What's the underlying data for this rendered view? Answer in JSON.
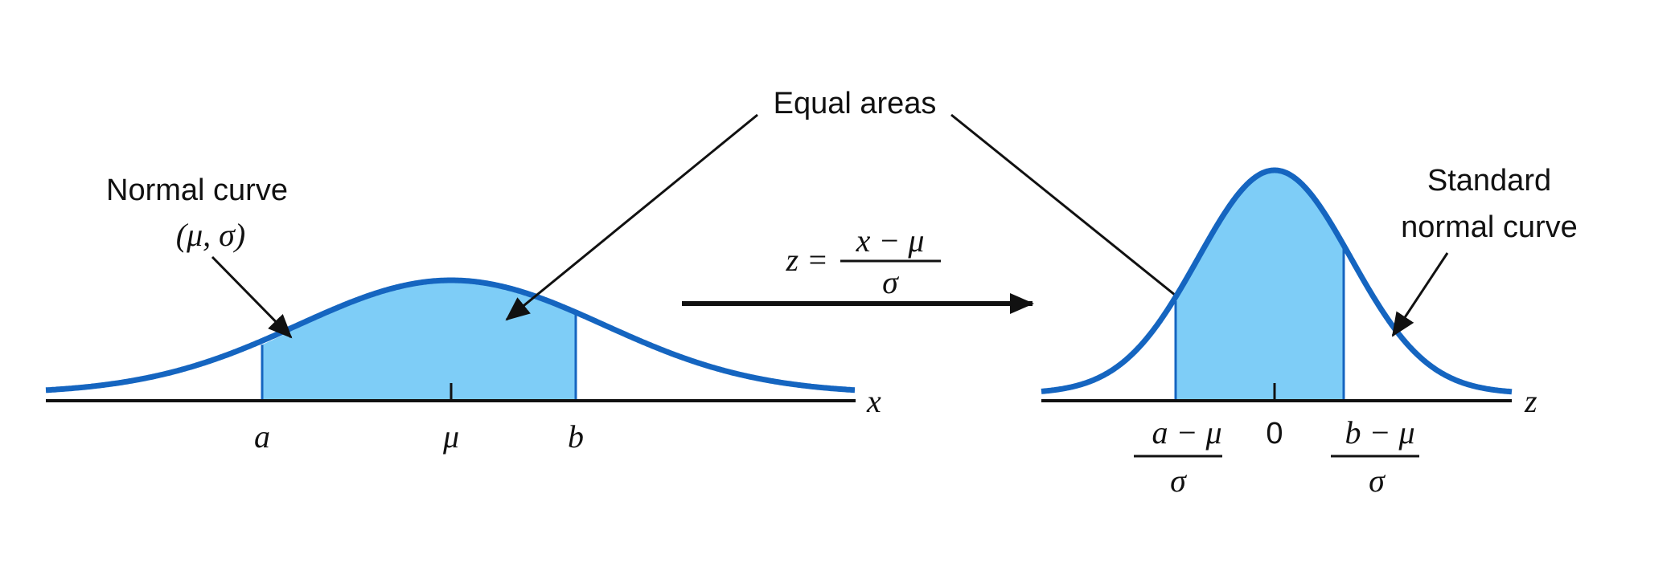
{
  "colors": {
    "curve": "#1565c0",
    "fill": "#7ecdf7",
    "axis": "#111111",
    "arrow": "#111111",
    "text": "#111111"
  },
  "left_panel": {
    "curve_label_line1": "Normal curve",
    "curve_label_line2": "(μ, σ)",
    "axis_label": "x",
    "tick_a": "a",
    "tick_mu": "μ",
    "tick_b": "b",
    "shaded_interval": [
      "a",
      "b"
    ]
  },
  "transform": {
    "lhs": "z =",
    "numerator": "x − μ",
    "denominator": "σ"
  },
  "callout_label": "Equal areas",
  "right_panel": {
    "curve_label_line1": "Standard",
    "curve_label_line2": "normal curve",
    "axis_label": "z",
    "tick_left_numerator": "a − μ",
    "tick_left_denominator": "σ",
    "tick_zero": "0",
    "tick_right_numerator": "b − μ",
    "tick_right_denominator": "σ"
  }
}
